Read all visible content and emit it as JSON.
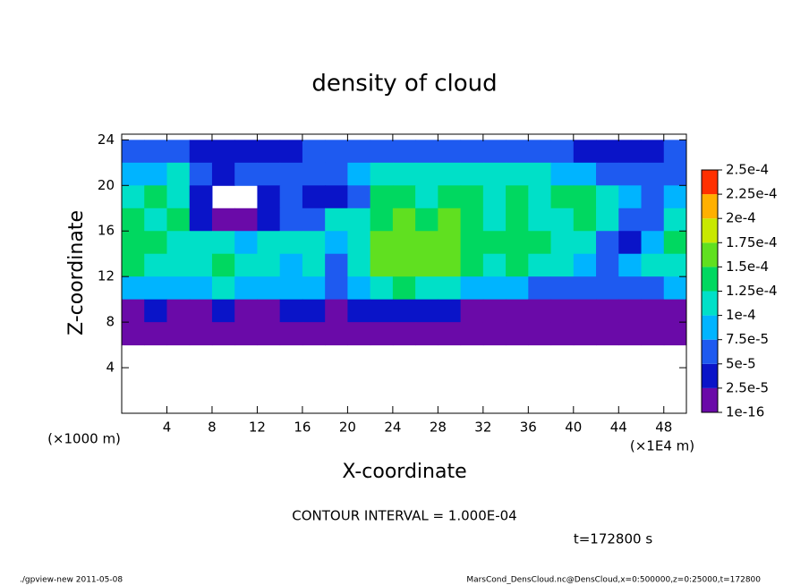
{
  "chart_data": {
    "type": "heatmap",
    "title": "density of cloud",
    "x_label": "X-coordinate",
    "y_label": "Z-coordinate",
    "x_unit_left": "(×1000 m)",
    "x_unit_right": "(×1E4 m)",
    "contour_note": "CONTOUR INTERVAL = 1.000E-04",
    "time_label": "t=172800 s",
    "footer_left": "./gpview-new  2011-05-08",
    "footer_right": "MarsCond_DensCloud.nc@DensCloud,x=0:500000,z=0:25000,t=172800",
    "xlim": [
      0,
      50
    ],
    "ylim": [
      0,
      24.5
    ],
    "xticks": [
      4,
      8,
      12,
      16,
      20,
      24,
      28,
      32,
      36,
      40,
      44,
      48
    ],
    "yticks": [
      4,
      8,
      12,
      16,
      20,
      24
    ],
    "x": [
      1,
      3,
      5,
      7,
      9,
      11,
      13,
      15,
      17,
      19,
      21,
      23,
      25,
      27,
      29,
      31,
      33,
      35,
      37,
      39,
      41,
      43,
      45,
      47,
      49
    ],
    "y": [
      23,
      21,
      19,
      17,
      15,
      13,
      11,
      9,
      7
    ],
    "z": [
      [
        6e-05,
        6e-05,
        5e-05,
        4e-05,
        4e-05,
        3e-05,
        3e-05,
        3e-05,
        5e-05,
        6e-05,
        6e-05,
        7e-05,
        6e-05,
        6e-05,
        7e-05,
        6e-05,
        6e-05,
        6e-05,
        5e-05,
        5e-05,
        4e-05,
        4e-05,
        3e-05,
        3e-05,
        6e-05
      ],
      [
        8e-05,
        9e-05,
        0.0001,
        6e-05,
        4e-05,
        5e-05,
        6e-05,
        6e-05,
        5e-05,
        7e-05,
        8e-05,
        0.00012,
        0.00011,
        0.0001,
        0.00011,
        0.00011,
        0.00012,
        0.00011,
        0.0001,
        9e-05,
        8e-05,
        6e-05,
        5e-05,
        5e-05,
        6e-05
      ],
      [
        0.0001,
        0.00013,
        0.00011,
        4e-05,
        null,
        null,
        3e-05,
        5e-05,
        4e-05,
        3e-05,
        6e-05,
        0.00014,
        0.00014,
        0.00012,
        0.00013,
        0.00013,
        0.00012,
        0.00014,
        0.00012,
        0.00013,
        0.00013,
        0.00011,
        8e-05,
        6e-05,
        8e-05
      ],
      [
        0.00013,
        0.00012,
        0.00013,
        3e-05,
        2e-05,
        1e-05,
        3e-05,
        5e-05,
        6e-05,
        0.0001,
        0.00011,
        0.00014,
        0.00015,
        0.00014,
        0.00015,
        0.00013,
        0.00012,
        0.00013,
        0.00011,
        0.00012,
        0.00013,
        0.0001,
        7e-05,
        5e-05,
        0.00012
      ],
      [
        0.00014,
        0.00013,
        0.00012,
        0.0001,
        0.00012,
        9e-05,
        0.00011,
        0.0001,
        0.00012,
        8e-05,
        0.00012,
        0.00015,
        0.00016,
        0.00015,
        0.00017,
        0.00014,
        0.00013,
        0.00014,
        0.00013,
        0.00012,
        0.00011,
        6e-05,
        3e-05,
        8e-05,
        0.00013
      ],
      [
        0.00013,
        0.00012,
        0.00011,
        0.00012,
        0.00013,
        0.00011,
        0.00012,
        9e-05,
        0.00011,
        7e-05,
        0.00011,
        0.00015,
        0.00016,
        0.00015,
        0.00016,
        0.00013,
        0.00012,
        0.00013,
        0.00012,
        0.00011,
        9e-05,
        7e-05,
        8e-05,
        0.00011,
        0.00012
      ],
      [
        9e-05,
        8e-05,
        8e-05,
        9e-05,
        0.0001,
        8e-05,
        9e-05,
        8e-05,
        9e-05,
        6e-05,
        9e-05,
        0.00012,
        0.00013,
        0.00012,
        0.00011,
        9e-05,
        8e-05,
        8e-05,
        7e-05,
        7e-05,
        7e-05,
        6e-05,
        6e-05,
        7e-05,
        8e-05
      ],
      [
        2e-05,
        3e-05,
        2e-05,
        2e-05,
        3e-05,
        2e-05,
        2e-05,
        3e-05,
        3e-05,
        2e-05,
        3e-05,
        4e-05,
        4e-05,
        3e-05,
        3e-05,
        2e-05,
        2e-05,
        2e-05,
        2e-05,
        2e-05,
        2e-05,
        2e-05,
        2e-05,
        2e-05,
        2e-05
      ],
      [
        1e-05,
        1e-05,
        1e-05,
        1e-05,
        1e-05,
        1e-05,
        1e-05,
        1e-05,
        1e-05,
        1e-05,
        1e-05,
        1e-05,
        1e-05,
        1e-05,
        1e-05,
        1e-05,
        1e-05,
        1e-05,
        1e-05,
        1e-05,
        1e-05,
        1e-05,
        1e-05,
        1e-05,
        1e-05
      ]
    ],
    "colorbar_ticks": [
      {
        "value": 1e-16,
        "label": "1e-16"
      },
      {
        "value": 2.5e-05,
        "label": "2.5e-5"
      },
      {
        "value": 5e-05,
        "label": "5e-5"
      },
      {
        "value": 7.5e-05,
        "label": "7.5e-5"
      },
      {
        "value": 0.0001,
        "label": "1e-4"
      },
      {
        "value": 0.000125,
        "label": "1.25e-4"
      },
      {
        "value": 0.00015,
        "label": "1.5e-4"
      },
      {
        "value": 0.000175,
        "label": "1.75e-4"
      },
      {
        "value": 0.0002,
        "label": "2e-4"
      },
      {
        "value": 0.000225,
        "label": "2.25e-4"
      },
      {
        "value": 0.00025,
        "label": "2.5e-4"
      }
    ],
    "colors": [
      "#6a0aa8",
      "#0a14c8",
      "#1e5af0",
      "#00b4ff",
      "#00e0c8",
      "#00d860",
      "#60e020",
      "#c8e800",
      "#ffb000",
      "#ff3000"
    ]
  }
}
